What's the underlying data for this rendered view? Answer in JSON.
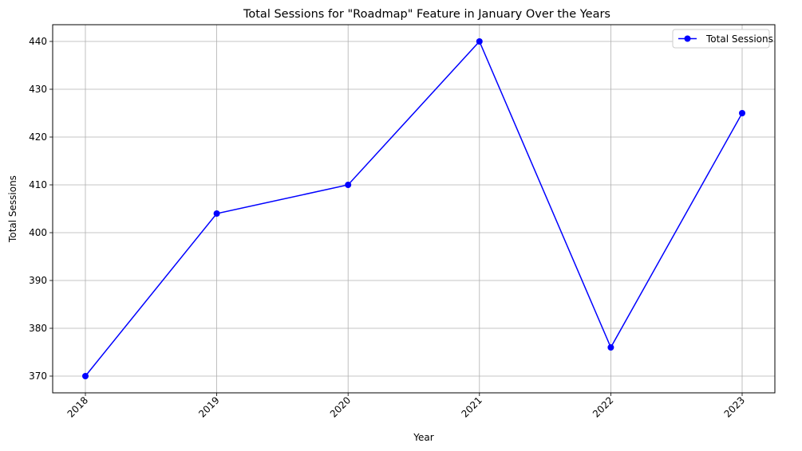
{
  "chart_data": {
    "type": "line",
    "title": "Total Sessions for \"Roadmap\" Feature in January Over the Years",
    "xlabel": "Year",
    "ylabel": "Total Sessions",
    "x": [
      2018,
      2019,
      2020,
      2021,
      2022,
      2023
    ],
    "x_tick_labels": [
      "2018",
      "2019",
      "2020",
      "2021",
      "2022",
      "2023"
    ],
    "y_ticks": [
      370,
      380,
      390,
      400,
      410,
      420,
      430,
      440
    ],
    "ylim": [
      366.5,
      443.5
    ],
    "grid": true,
    "legend_position": "top-right",
    "series": [
      {
        "name": "Total Sessions",
        "color": "#0000ff",
        "marker": "circle",
        "values": [
          370,
          404,
          410,
          440,
          376,
          425
        ]
      }
    ]
  }
}
